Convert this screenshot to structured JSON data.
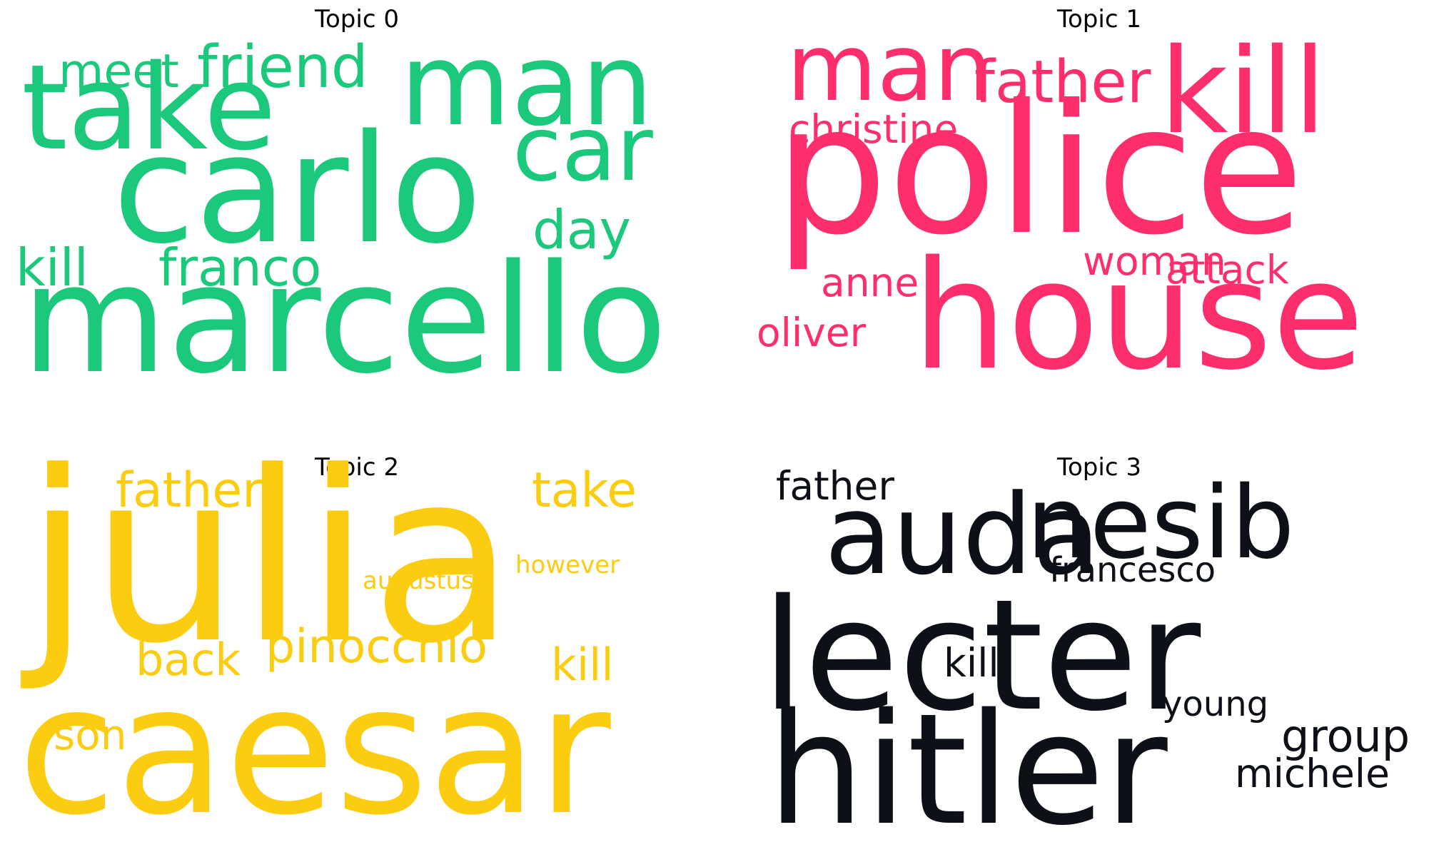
{
  "chart_data": {
    "type": "wordcloud",
    "panels": [
      {
        "title": "Topic 0",
        "color": "#1cc87c",
        "words": [
          "marcello",
          "carlo",
          "take",
          "man",
          "car",
          "friend",
          "meet",
          "day",
          "kill",
          "franco"
        ]
      },
      {
        "title": "Topic 1",
        "color": "#fc2e6c",
        "words": [
          "police",
          "house",
          "kill",
          "man",
          "father",
          "christine",
          "woman",
          "attack",
          "anne",
          "oliver"
        ]
      },
      {
        "title": "Topic 2",
        "color": "#fbcc10",
        "words": [
          "julia",
          "caesar",
          "father",
          "take",
          "pinocchio",
          "back",
          "kill",
          "son",
          "augustus",
          "however"
        ]
      },
      {
        "title": "Topic 3",
        "color": "#0d1016",
        "words": [
          "lecter",
          "hitler",
          "auda",
          "nesib",
          "father",
          "francesco",
          "kill",
          "young",
          "group",
          "michele"
        ]
      }
    ]
  }
}
